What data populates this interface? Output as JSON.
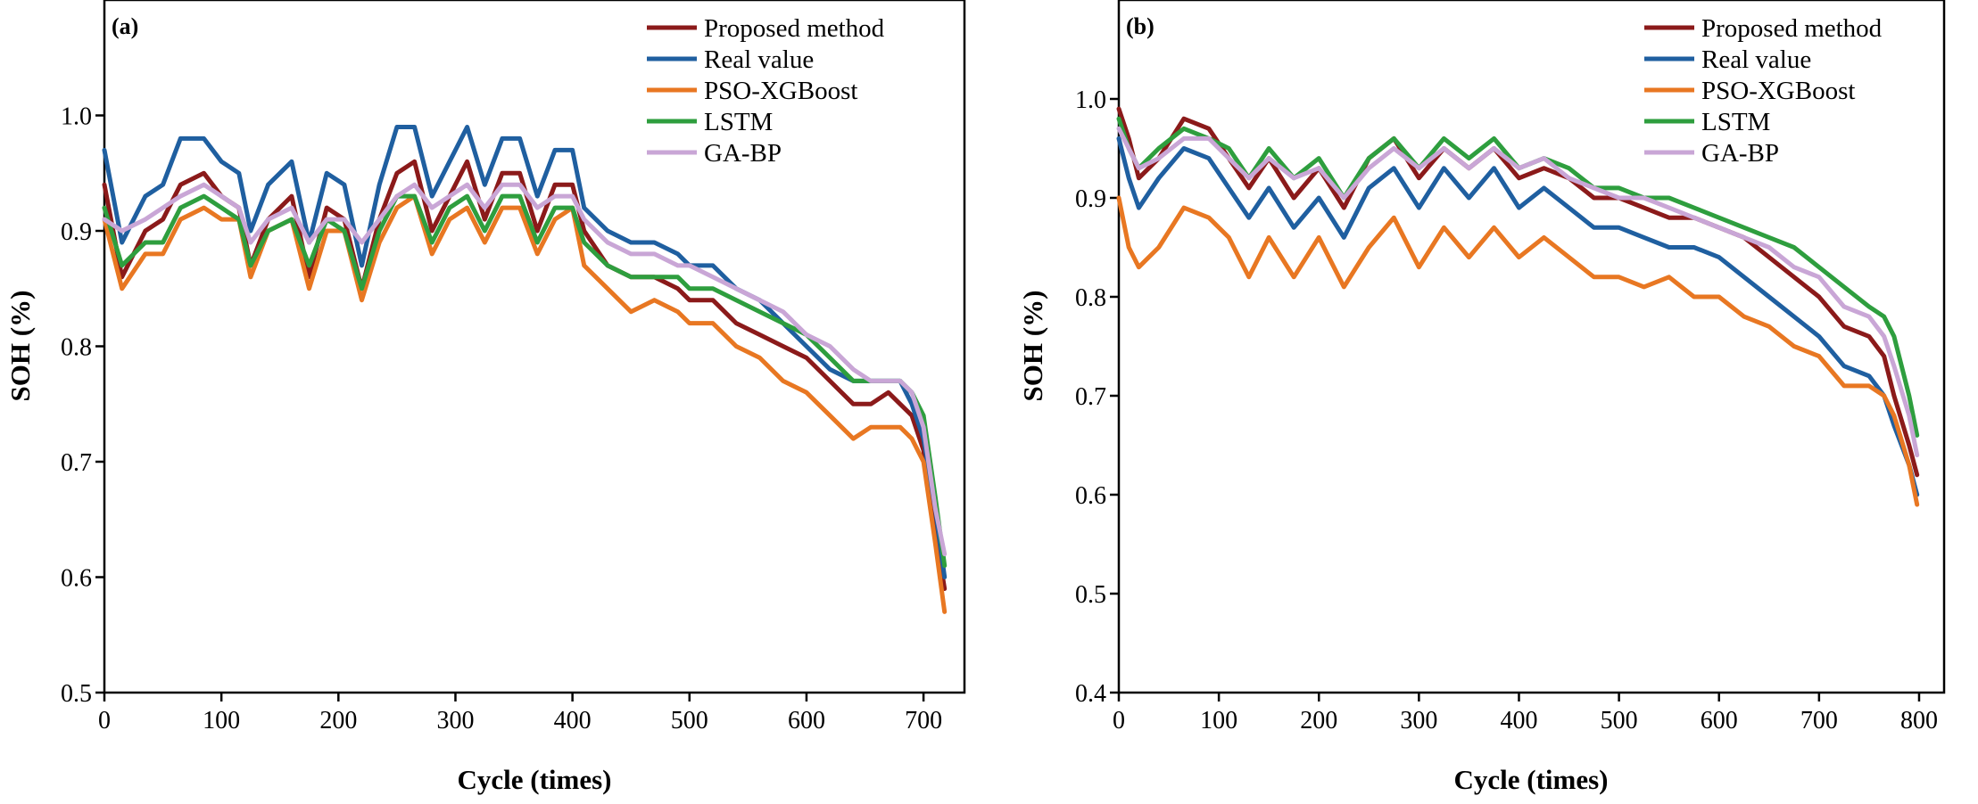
{
  "chart_data": [
    {
      "type": "line",
      "panel_label": "(a)",
      "xlabel": "Cycle (times)",
      "ylabel": "SOH (%)",
      "xlim": [
        0,
        735
      ],
      "ylim": [
        0.5,
        1.1
      ],
      "xticks": [
        0,
        100,
        200,
        300,
        400,
        500,
        600,
        700
      ],
      "xtick_labels": [
        "0",
        "100",
        "200",
        "300",
        "400",
        "500",
        "600",
        "700"
      ],
      "yticks": [
        0.5,
        0.6,
        0.7,
        0.8,
        0.9,
        1.0
      ],
      "ytick_labels": [
        "0.5",
        "0.6",
        "0.7",
        "0.8",
        "0.9",
        "1.0"
      ],
      "legend_position": "top-right",
      "series": [
        {
          "name": "Proposed method",
          "color": "#8b1a1a",
          "x": [
            0,
            15,
            35,
            50,
            65,
            85,
            100,
            115,
            125,
            140,
            160,
            175,
            190,
            205,
            220,
            235,
            250,
            265,
            280,
            295,
            310,
            325,
            340,
            355,
            370,
            385,
            400,
            410,
            430,
            450,
            470,
            490,
            500,
            520,
            540,
            560,
            580,
            600,
            620,
            640,
            655,
            670,
            680,
            690,
            700,
            710,
            718
          ],
          "y": [
            0.94,
            0.86,
            0.9,
            0.91,
            0.94,
            0.95,
            0.93,
            0.92,
            0.87,
            0.91,
            0.93,
            0.86,
            0.92,
            0.91,
            0.85,
            0.91,
            0.95,
            0.96,
            0.9,
            0.93,
            0.96,
            0.91,
            0.95,
            0.95,
            0.9,
            0.94,
            0.94,
            0.9,
            0.87,
            0.86,
            0.86,
            0.85,
            0.84,
            0.84,
            0.82,
            0.81,
            0.8,
            0.79,
            0.77,
            0.75,
            0.75,
            0.76,
            0.75,
            0.74,
            0.71,
            0.64,
            0.59
          ]
        },
        {
          "name": "Real value",
          "color": "#1f5fa0",
          "x": [
            0,
            15,
            35,
            50,
            65,
            85,
            100,
            115,
            125,
            140,
            160,
            175,
            190,
            205,
            220,
            235,
            250,
            265,
            280,
            295,
            310,
            325,
            340,
            355,
            370,
            385,
            400,
            410,
            430,
            450,
            470,
            490,
            500,
            520,
            540,
            560,
            580,
            600,
            620,
            640,
            655,
            670,
            680,
            690,
            700,
            710,
            718
          ],
          "y": [
            0.97,
            0.89,
            0.93,
            0.94,
            0.98,
            0.98,
            0.96,
            0.95,
            0.9,
            0.94,
            0.96,
            0.89,
            0.95,
            0.94,
            0.87,
            0.94,
            0.99,
            0.99,
            0.93,
            0.96,
            0.99,
            0.94,
            0.98,
            0.98,
            0.93,
            0.97,
            0.97,
            0.92,
            0.9,
            0.89,
            0.89,
            0.88,
            0.87,
            0.87,
            0.85,
            0.84,
            0.82,
            0.8,
            0.78,
            0.77,
            0.77,
            0.77,
            0.77,
            0.75,
            0.72,
            0.66,
            0.6
          ]
        },
        {
          "name": "PSO-XGBoost",
          "color": "#e87722",
          "x": [
            0,
            15,
            35,
            50,
            65,
            85,
            100,
            115,
            125,
            140,
            160,
            175,
            190,
            205,
            220,
            235,
            250,
            265,
            280,
            295,
            310,
            325,
            340,
            355,
            370,
            385,
            400,
            410,
            430,
            450,
            470,
            490,
            500,
            520,
            540,
            560,
            580,
            600,
            620,
            640,
            655,
            670,
            680,
            690,
            700,
            710,
            718
          ],
          "y": [
            0.91,
            0.85,
            0.88,
            0.88,
            0.91,
            0.92,
            0.91,
            0.91,
            0.86,
            0.9,
            0.91,
            0.85,
            0.9,
            0.9,
            0.84,
            0.89,
            0.92,
            0.93,
            0.88,
            0.91,
            0.92,
            0.89,
            0.92,
            0.92,
            0.88,
            0.91,
            0.92,
            0.87,
            0.85,
            0.83,
            0.84,
            0.83,
            0.82,
            0.82,
            0.8,
            0.79,
            0.77,
            0.76,
            0.74,
            0.72,
            0.73,
            0.73,
            0.73,
            0.72,
            0.7,
            0.63,
            0.57
          ]
        },
        {
          "name": "LSTM",
          "color": "#2e9e3e",
          "x": [
            0,
            15,
            35,
            50,
            65,
            85,
            100,
            115,
            125,
            140,
            160,
            175,
            190,
            205,
            220,
            235,
            250,
            265,
            280,
            295,
            310,
            325,
            340,
            355,
            370,
            385,
            400,
            410,
            430,
            450,
            470,
            490,
            500,
            520,
            540,
            560,
            580,
            600,
            620,
            640,
            655,
            670,
            680,
            690,
            700,
            710,
            718
          ],
          "y": [
            0.92,
            0.87,
            0.89,
            0.89,
            0.92,
            0.93,
            0.92,
            0.91,
            0.87,
            0.9,
            0.91,
            0.87,
            0.91,
            0.9,
            0.85,
            0.9,
            0.93,
            0.93,
            0.89,
            0.92,
            0.93,
            0.9,
            0.93,
            0.93,
            0.89,
            0.92,
            0.92,
            0.89,
            0.87,
            0.86,
            0.86,
            0.86,
            0.85,
            0.85,
            0.84,
            0.83,
            0.82,
            0.81,
            0.79,
            0.77,
            0.77,
            0.77,
            0.77,
            0.76,
            0.74,
            0.67,
            0.61
          ]
        },
        {
          "name": "GA-BP",
          "color": "#c9a6d6",
          "x": [
            0,
            15,
            35,
            50,
            65,
            85,
            100,
            115,
            125,
            140,
            160,
            175,
            190,
            205,
            220,
            235,
            250,
            265,
            280,
            295,
            310,
            325,
            340,
            355,
            370,
            385,
            400,
            410,
            430,
            450,
            470,
            490,
            500,
            520,
            540,
            560,
            580,
            600,
            620,
            640,
            655,
            670,
            680,
            690,
            700,
            710,
            718
          ],
          "y": [
            0.91,
            0.9,
            0.91,
            0.92,
            0.93,
            0.94,
            0.93,
            0.92,
            0.89,
            0.91,
            0.92,
            0.89,
            0.91,
            0.91,
            0.89,
            0.91,
            0.93,
            0.94,
            0.92,
            0.93,
            0.94,
            0.92,
            0.94,
            0.94,
            0.92,
            0.93,
            0.93,
            0.91,
            0.89,
            0.88,
            0.88,
            0.87,
            0.87,
            0.86,
            0.85,
            0.84,
            0.83,
            0.81,
            0.8,
            0.78,
            0.77,
            0.77,
            0.77,
            0.76,
            0.73,
            0.66,
            0.62
          ]
        }
      ]
    },
    {
      "type": "line",
      "panel_label": "(b)",
      "xlabel": "Cycle (times)",
      "ylabel": "SOH (%)",
      "xlim": [
        0,
        825
      ],
      "ylim": [
        0.4,
        1.1
      ],
      "xticks": [
        0,
        100,
        200,
        300,
        400,
        500,
        600,
        700,
        800
      ],
      "xtick_labels": [
        "0",
        "100",
        "200",
        "300",
        "400",
        "500",
        "600",
        "700",
        "800"
      ],
      "yticks": [
        0.4,
        0.5,
        0.6,
        0.7,
        0.8,
        0.9,
        1.0
      ],
      "ytick_labels": [
        "0.4",
        "0.5",
        "0.6",
        "0.7",
        "0.8",
        "0.9",
        "1.0"
      ],
      "legend_position": "top-right",
      "series": [
        {
          "name": "Proposed method",
          "color": "#8b1a1a",
          "x": [
            0,
            10,
            20,
            40,
            65,
            90,
            110,
            130,
            150,
            175,
            200,
            225,
            250,
            275,
            300,
            325,
            350,
            375,
            400,
            425,
            450,
            475,
            500,
            525,
            550,
            575,
            600,
            625,
            650,
            675,
            700,
            725,
            750,
            765,
            775,
            790,
            798
          ],
          "y": [
            0.99,
            0.96,
            0.92,
            0.94,
            0.98,
            0.97,
            0.94,
            0.91,
            0.94,
            0.9,
            0.93,
            0.89,
            0.94,
            0.96,
            0.92,
            0.95,
            0.93,
            0.95,
            0.92,
            0.93,
            0.92,
            0.9,
            0.9,
            0.89,
            0.88,
            0.88,
            0.87,
            0.86,
            0.84,
            0.82,
            0.8,
            0.77,
            0.76,
            0.74,
            0.7,
            0.65,
            0.62
          ]
        },
        {
          "name": "Real value",
          "color": "#1f5fa0",
          "x": [
            0,
            10,
            20,
            40,
            65,
            90,
            110,
            130,
            150,
            175,
            200,
            225,
            250,
            275,
            300,
            325,
            350,
            375,
            400,
            425,
            450,
            475,
            500,
            525,
            550,
            575,
            600,
            625,
            650,
            675,
            700,
            725,
            750,
            765,
            775,
            790,
            798
          ],
          "y": [
            0.96,
            0.92,
            0.89,
            0.92,
            0.95,
            0.94,
            0.91,
            0.88,
            0.91,
            0.87,
            0.9,
            0.86,
            0.91,
            0.93,
            0.89,
            0.93,
            0.9,
            0.93,
            0.89,
            0.91,
            0.89,
            0.87,
            0.87,
            0.86,
            0.85,
            0.85,
            0.84,
            0.82,
            0.8,
            0.78,
            0.76,
            0.73,
            0.72,
            0.7,
            0.67,
            0.63,
            0.6
          ]
        },
        {
          "name": "PSO-XGBoost",
          "color": "#e87722",
          "x": [
            0,
            10,
            20,
            40,
            65,
            90,
            110,
            130,
            150,
            175,
            200,
            225,
            250,
            275,
            300,
            325,
            350,
            375,
            400,
            425,
            450,
            475,
            500,
            525,
            550,
            575,
            600,
            625,
            650,
            675,
            700,
            725,
            750,
            765,
            775,
            790,
            798
          ],
          "y": [
            0.9,
            0.85,
            0.83,
            0.85,
            0.89,
            0.88,
            0.86,
            0.82,
            0.86,
            0.82,
            0.86,
            0.81,
            0.85,
            0.88,
            0.83,
            0.87,
            0.84,
            0.87,
            0.84,
            0.86,
            0.84,
            0.82,
            0.82,
            0.81,
            0.82,
            0.8,
            0.8,
            0.78,
            0.77,
            0.75,
            0.74,
            0.71,
            0.71,
            0.7,
            0.68,
            0.63,
            0.59
          ]
        },
        {
          "name": "LSTM",
          "color": "#2e9e3e",
          "x": [
            0,
            10,
            20,
            40,
            65,
            90,
            110,
            130,
            150,
            175,
            200,
            225,
            250,
            275,
            300,
            325,
            350,
            375,
            400,
            425,
            450,
            475,
            500,
            525,
            550,
            575,
            600,
            625,
            650,
            675,
            700,
            725,
            750,
            765,
            775,
            790,
            798
          ],
          "y": [
            0.98,
            0.95,
            0.93,
            0.95,
            0.97,
            0.96,
            0.95,
            0.92,
            0.95,
            0.92,
            0.94,
            0.9,
            0.94,
            0.96,
            0.93,
            0.96,
            0.94,
            0.96,
            0.93,
            0.94,
            0.93,
            0.91,
            0.91,
            0.9,
            0.9,
            0.89,
            0.88,
            0.87,
            0.86,
            0.85,
            0.83,
            0.81,
            0.79,
            0.78,
            0.76,
            0.7,
            0.66
          ]
        },
        {
          "name": "GA-BP",
          "color": "#c9a6d6",
          "x": [
            0,
            10,
            20,
            40,
            65,
            90,
            110,
            130,
            150,
            175,
            200,
            225,
            250,
            275,
            300,
            325,
            350,
            375,
            400,
            425,
            450,
            475,
            500,
            525,
            550,
            575,
            600,
            625,
            650,
            675,
            700,
            725,
            750,
            765,
            775,
            790,
            798
          ],
          "y": [
            0.97,
            0.95,
            0.93,
            0.94,
            0.96,
            0.96,
            0.94,
            0.92,
            0.94,
            0.92,
            0.93,
            0.9,
            0.93,
            0.95,
            0.93,
            0.95,
            0.93,
            0.95,
            0.93,
            0.94,
            0.92,
            0.91,
            0.9,
            0.9,
            0.89,
            0.88,
            0.87,
            0.86,
            0.85,
            0.83,
            0.82,
            0.79,
            0.78,
            0.76,
            0.73,
            0.68,
            0.64
          ]
        }
      ]
    }
  ]
}
